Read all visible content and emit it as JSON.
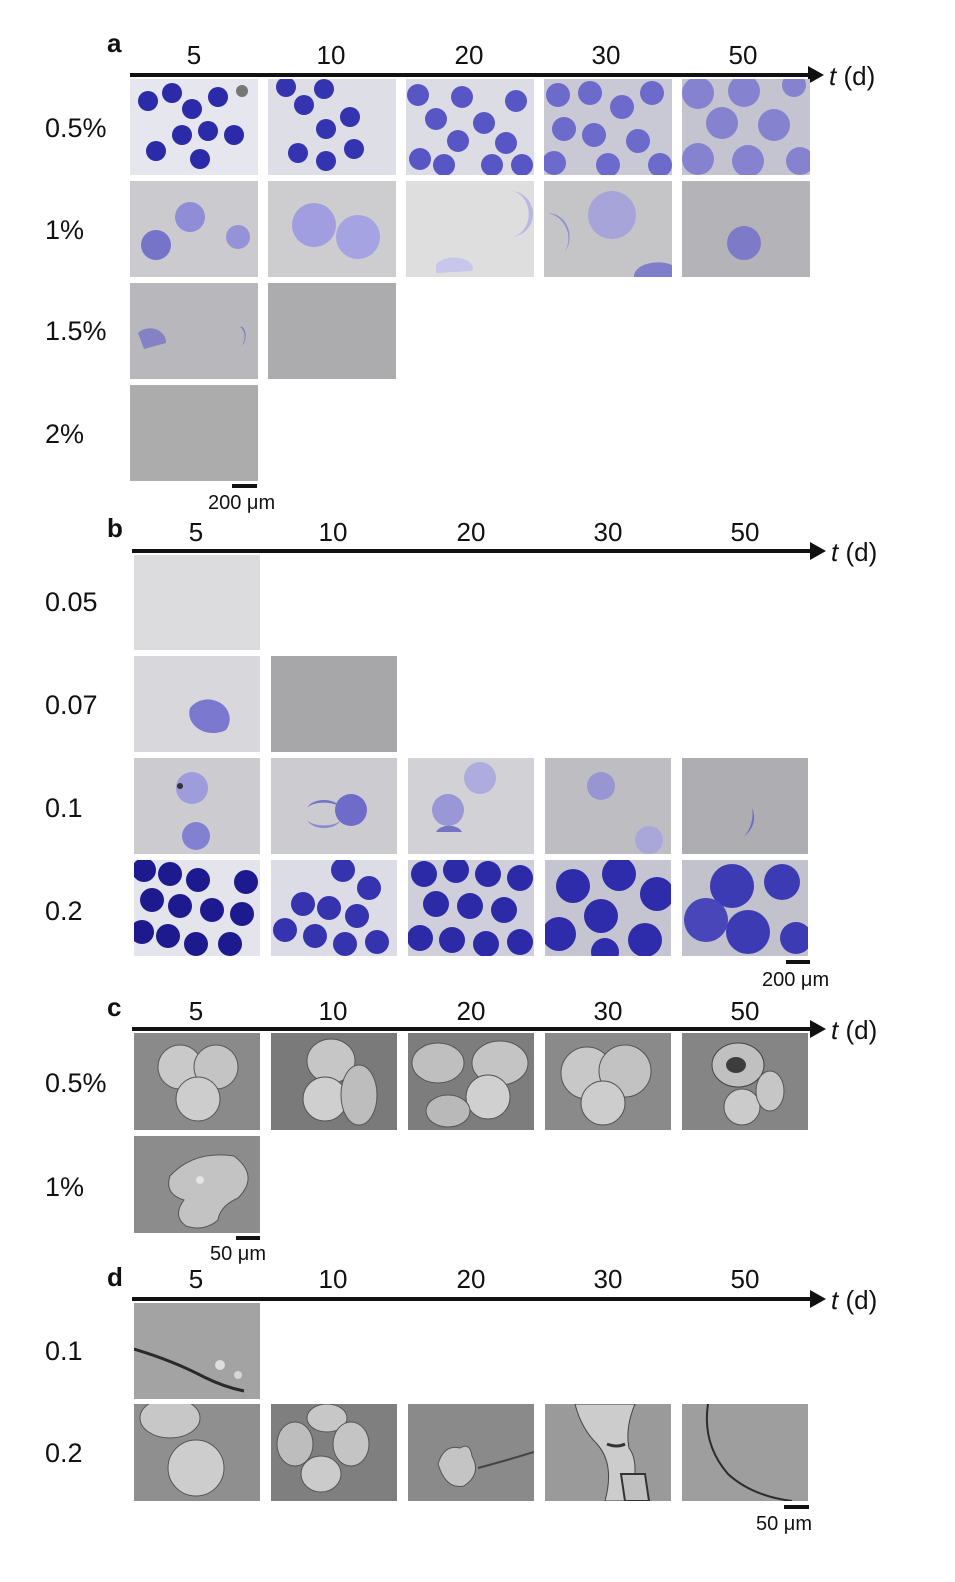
{
  "panels": [
    {
      "label": "a",
      "axis_label": "t",
      "axis_unit": " (d)",
      "timepoints": [
        "5",
        "10",
        "20",
        "30",
        "50"
      ],
      "rows": [
        {
          "label": "0.5%",
          "images": [
            "dense blue microgels",
            "dense blue microgels",
            "blue microgels",
            "blue microgels",
            "large pale blue microgels"
          ]
        },
        {
          "label": "1%",
          "images": [
            "pale blue microgels",
            "pale blue microgels",
            "faint deformed microgels",
            "pale blue microgels",
            "single pale microgel"
          ]
        },
        {
          "label": "1.5%",
          "images": [
            "faint microgels",
            "empty field"
          ]
        },
        {
          "label": "2%",
          "images": [
            "empty field"
          ]
        }
      ],
      "scale_bar": "200 μm"
    },
    {
      "label": "b",
      "axis_label": "t",
      "axis_unit": " (d)",
      "timepoints": [
        "5",
        "10",
        "20",
        "30",
        "50"
      ],
      "rows": [
        {
          "label": "0.05",
          "images": [
            "empty field"
          ]
        },
        {
          "label": "0.07",
          "images": [
            "faint deformed microgel",
            "empty field"
          ]
        },
        {
          "label": "0.1",
          "images": [
            "pale blue microgels",
            "pale blue microgels",
            "pale blue microgels",
            "pale blue microgels",
            "single pale microgel"
          ]
        },
        {
          "label": "0.2",
          "images": [
            "dense dark blue microgels",
            "dense blue microgels",
            "dense blue microgels",
            "large blue microgels",
            "large blue microgels"
          ]
        }
      ],
      "scale_bar": "200 μm"
    },
    {
      "label": "c",
      "axis_label": "t",
      "axis_unit": " (d)",
      "timepoints": [
        "5",
        "10",
        "20",
        "30",
        "50"
      ],
      "rows": [
        {
          "label": "0.5%",
          "images": [
            "SEM spherical microgels",
            "SEM deformed microgels",
            "SEM deformed microgels",
            "SEM deformed microgels",
            "SEM deformed microgels"
          ]
        },
        {
          "label": "1%",
          "images": [
            "SEM collapsed microgel"
          ]
        }
      ],
      "scale_bar": "50 μm"
    },
    {
      "label": "d",
      "axis_label": "t",
      "axis_unit": " (d)",
      "timepoints": [
        "5",
        "10",
        "20",
        "30",
        "50"
      ],
      "rows": [
        {
          "label": "0.1",
          "images": [
            "SEM flattened microgel"
          ]
        },
        {
          "label": "0.2",
          "images": [
            "SEM spherical microgels",
            "SEM clustered microgels",
            "SEM collapsed microgel",
            "SEM collapsed microgel",
            "SEM flattened film"
          ]
        }
      ],
      "scale_bar": "50 μm"
    }
  ],
  "colors": {
    "axis": "#111111",
    "blue_dark": "#2a2aa8",
    "blue_mid": "#5b5bc4",
    "blue_pale": "#9a9ad8",
    "gray_bg": "#cfcfcf",
    "sem_bg": "#8d8d8d"
  }
}
